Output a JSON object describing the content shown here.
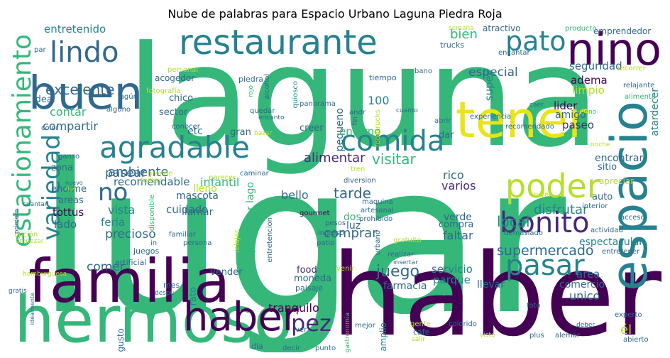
{
  "title": "Nube de palabras para Espacio Urbano Laguna Piedra Roja",
  "palette": {
    "dark_purple": "#440154",
    "purple": "#482878",
    "blue": "#31688e",
    "teal": "#26828e",
    "green": "#35b779",
    "yellow_green": "#b5de2b",
    "yellow": "#e8e419"
  },
  "words": [
    {
      "text": "lugar",
      "color": "#35b779"
    },
    {
      "text": "laguna",
      "color": "#35b779"
    },
    {
      "text": "haber",
      "color": "#440154"
    },
    {
      "text": "hermoso",
      "color": "#35b779"
    },
    {
      "text": "familia",
      "color": "#440154"
    },
    {
      "text": "restaurante",
      "color": "#26828e"
    },
    {
      "text": "espacio",
      "color": "#26828e"
    },
    {
      "text": "tener",
      "color": "#e8e419"
    },
    {
      "text": "buen",
      "color": "#31688e"
    },
    {
      "text": "nino",
      "color": "#440154"
    },
    {
      "text": "estacionamiento",
      "color": "#35b779"
    },
    {
      "text": "agradable",
      "color": "#26828e"
    },
    {
      "text": "bonito",
      "color": "#482878"
    },
    {
      "text": "pasar",
      "color": "#26828e"
    },
    {
      "text": "poder",
      "color": "#b5de2b"
    },
    {
      "text": "comida",
      "color": "#26828e"
    },
    {
      "text": "pez",
      "color": "#482878"
    },
    {
      "text": "lindo",
      "color": "#31688e"
    },
    {
      "text": "pato",
      "color": "#26828e"
    },
    {
      "text": "variedad",
      "color": "#26828e"
    },
    {
      "text": "no",
      "color": "#31688e"
    },
    {
      "text": "excelente",
      "color": "#31688e"
    },
    {
      "text": "haber",
      "color": "#440154"
    },
    {
      "text": "entretenido",
      "color": "#26828e"
    },
    {
      "text": "bien",
      "color": "#35b779"
    },
    {
      "text": "supermercado",
      "color": "#31688e"
    },
    {
      "text": "juego",
      "color": "#31688e"
    },
    {
      "text": "local",
      "color": "#26828e"
    },
    {
      "text": "disfrutar",
      "color": "#26828e"
    },
    {
      "text": "tarde",
      "color": "#31688e"
    },
    {
      "text": "visitar",
      "color": "#35b779"
    },
    {
      "text": "ambiente",
      "color": "#31688e"
    },
    {
      "text": "alimentar",
      "color": "#482878"
    },
    {
      "text": "especial",
      "color": "#31688e"
    },
    {
      "text": "pasear",
      "color": "#31688e"
    },
    {
      "text": "comer",
      "color": "#31688e"
    },
    {
      "text": "comprar",
      "color": "#31688e"
    },
    {
      "text": "precioso",
      "color": "#31688e"
    },
    {
      "text": "tranquilo",
      "color": "#440154"
    },
    {
      "text": "contar",
      "color": "#35b779"
    },
    {
      "text": "compartir",
      "color": "#31688e"
    },
    {
      "text": "recomendable",
      "color": "#31688e"
    },
    {
      "text": "infantil",
      "color": "#35b779"
    },
    {
      "text": "vista",
      "color": "#26828e"
    },
    {
      "text": "rico",
      "color": "#31688e"
    },
    {
      "text": "varios",
      "color": "#482878"
    },
    {
      "text": "cuidado",
      "color": "#31688e"
    },
    {
      "text": "bello",
      "color": "#31688e"
    },
    {
      "text": "pequeno",
      "color": "#31688e"
    },
    {
      "text": "100",
      "color": "#26828e"
    },
    {
      "text": "super",
      "color": "#26828e"
    },
    {
      "text": "etc",
      "color": "#31688e"
    },
    {
      "text": "entorno",
      "color": "#35b779"
    },
    {
      "text": "dispensador lago",
      "color": "#35b779"
    },
    {
      "text": "adema",
      "color": "#440154"
    },
    {
      "text": "limpio",
      "color": "#b5de2b"
    },
    {
      "text": "seguridad",
      "color": "#31688e"
    },
    {
      "text": "lider",
      "color": "#440154"
    },
    {
      "text": "atardecer",
      "color": "#26828e"
    },
    {
      "text": "paseo",
      "color": "#482878"
    },
    {
      "text": "amigo",
      "color": "#31688e"
    },
    {
      "text": "encontrar",
      "color": "#31688e"
    },
    {
      "text": "feria",
      "color": "#26828e"
    },
    {
      "text": "lado",
      "color": "#31688e"
    },
    {
      "text": "tottus",
      "color": "#440154"
    },
    {
      "text": "mascota",
      "color": "#31688e"
    },
    {
      "text": "lleno",
      "color": "#b5de2b"
    },
    {
      "text": "llamar",
      "color": "#31688e"
    },
    {
      "text": "faltar",
      "color": "#31688e"
    },
    {
      "text": "servicio",
      "color": "#26828e"
    },
    {
      "text": "parque",
      "color": "#26828e"
    },
    {
      "text": "farmacia",
      "color": "#31688e"
    },
    {
      "text": "llevar",
      "color": "#31688e"
    },
    {
      "text": "area",
      "color": "#31688e"
    },
    {
      "text": "comercio",
      "color": "#31688e"
    },
    {
      "text": "unico",
      "color": "#31688e"
    },
    {
      "text": "él",
      "color": "#b5de2b"
    },
    {
      "text": "espectacular",
      "color": "#26828e"
    },
    {
      "text": "verde",
      "color": "#31688e"
    },
    {
      "text": "compra",
      "color": "#31688e"
    },
    {
      "text": "dos",
      "color": "#35b779"
    },
    {
      "text": "luz",
      "color": "#31688e"
    },
    {
      "text": "gran",
      "color": "#31688e"
    },
    {
      "text": "creer",
      "color": "#31688e"
    },
    {
      "text": "dar",
      "color": "#31688e"
    },
    {
      "text": "sitio",
      "color": "#31688e"
    },
    {
      "text": "auto",
      "color": "#31688e"
    },
    {
      "text": "apreciar",
      "color": "#b5de2b"
    },
    {
      "text": "vender",
      "color": "#31688e"
    },
    {
      "text": "food",
      "color": "#482878"
    },
    {
      "text": "moneda",
      "color": "#31688e"
    },
    {
      "text": "paisaje",
      "color": "#31688e"
    },
    {
      "text": "ideal",
      "color": "#31688e"
    },
    {
      "text": "chico",
      "color": "#31688e"
    },
    {
      "text": "sector",
      "color": "#31688e"
    },
    {
      "text": "zona",
      "color": "#31688e"
    },
    {
      "text": "enorme",
      "color": "#31688e"
    },
    {
      "text": "areas",
      "color": "#31688e"
    },
    {
      "text": "acogedor",
      "color": "#31688e"
    },
    {
      "text": "alimento",
      "color": "#35b779"
    },
    {
      "text": "atractivo",
      "color": "#31688e"
    },
    {
      "text": "emprendedor",
      "color": "#31688e"
    },
    {
      "text": "producto",
      "color": "#35b779"
    },
    {
      "text": "tiempo",
      "color": "#31688e"
    },
    {
      "text": "bano",
      "color": "#31688e"
    },
    {
      "text": "trucks",
      "color": "#31688e"
    },
    {
      "text": "piedra",
      "color": "#31688e"
    },
    {
      "text": "rojo",
      "color": "#35b779"
    },
    {
      "text": "personal",
      "color": "#b5de2b"
    },
    {
      "text": "fotografía",
      "color": "#b5de2b"
    },
    {
      "text": "alcohol",
      "color": "#31688e"
    },
    {
      "text": "quiosco",
      "color": "#26828e"
    },
    {
      "text": "panorama",
      "color": "#31688e"
    },
    {
      "text": "quedar",
      "color": "#31688e"
    },
    {
      "text": "encanto",
      "color": "#31688e"
    },
    {
      "text": "cuanto",
      "color": "#31688e"
    },
    {
      "text": "experiencia",
      "color": "#31688e"
    },
    {
      "text": "recomendado",
      "color": "#31688e"
    },
    {
      "text": "bueno",
      "color": "#35b779"
    },
    {
      "text": "abrir",
      "color": "#31688e"
    },
    {
      "text": "noche",
      "color": "#b5de2b"
    },
    {
      "text": "relajante",
      "color": "#31688e"
    },
    {
      "text": "recorrer",
      "color": "#b5de2b"
    },
    {
      "text": "encantar",
      "color": "#31688e"
    },
    {
      "text": "semana",
      "color": "#b5de2b"
    },
    {
      "text": "gente",
      "color": "#b5de2b"
    },
    {
      "text": "cafe",
      "color": "#31688e"
    },
    {
      "text": "salir",
      "color": "#b5de2b"
    },
    {
      "text": "mejor",
      "color": "#31688e"
    },
    {
      "text": "ver",
      "color": "#31688e"
    },
    {
      "text": "colorido",
      "color": "#31688e"
    },
    {
      "text": "visto",
      "color": "#b5de2b"
    },
    {
      "text": "plus",
      "color": "#31688e"
    },
    {
      "text": "alemar",
      "color": "#31688e"
    },
    {
      "text": "abierto",
      "color": "#31688e"
    },
    {
      "text": "experto",
      "color": "#31688e"
    },
    {
      "text": "deber",
      "color": "#31688e"
    },
    {
      "text": "foto",
      "color": "#31688e"
    },
    {
      "text": "dia",
      "color": "#31688e"
    },
    {
      "text": "decir",
      "color": "#31688e"
    },
    {
      "text": "punto",
      "color": "#31688e"
    },
    {
      "text": "gusto",
      "color": "#31688e"
    },
    {
      "text": "gastronomia",
      "color": "#35b779"
    },
    {
      "text": "amplio",
      "color": "#26828e"
    },
    {
      "text": "rato",
      "color": "#26828e"
    },
    {
      "text": "mes",
      "color": "#31688e"
    },
    {
      "text": "despu",
      "color": "#31688e"
    },
    {
      "text": "juegos",
      "color": "#31688e"
    },
    {
      "text": "artificial",
      "color": "#31688e"
    },
    {
      "text": "hamburguesa",
      "color": "#b5de2b"
    },
    {
      "text": "idealmente",
      "color": "#31688e"
    },
    {
      "text": "gratis",
      "color": "#31688e"
    },
    {
      "text": "opción",
      "color": "#b5de2b"
    },
    {
      "text": "empezar",
      "color": "#b5de2b"
    },
    {
      "text": "primero",
      "color": "#31688e"
    },
    {
      "text": "cuantar",
      "color": "#31688e"
    },
    {
      "text": "rica",
      "color": "#b5de2b"
    },
    {
      "text": "nuevo",
      "color": "#31688e"
    },
    {
      "text": "ganso",
      "color": "#31688e"
    },
    {
      "text": "color",
      "color": "#31688e"
    },
    {
      "text": "alguno",
      "color": "#31688e"
    },
    {
      "text": "lagún",
      "color": "#31688e"
    },
    {
      "text": "par",
      "color": "#31688e"
    },
    {
      "text": "conocer",
      "color": "#31688e"
    },
    {
      "text": "grande",
      "color": "#b5de2b"
    },
    {
      "text": "tomar",
      "color": "#b5de2b"
    },
    {
      "text": "parecer",
      "color": "#b5de2b"
    },
    {
      "text": "caminar",
      "color": "#31688e"
    },
    {
      "text": "diversion",
      "color": "#31688e"
    },
    {
      "text": "maquina",
      "color": "#31688e"
    },
    {
      "text": "artesanal",
      "color": "#31688e"
    },
    {
      "text": "gourmet",
      "color": "#440154"
    },
    {
      "text": "prohibido",
      "color": "#31688e"
    },
    {
      "text": "pesos",
      "color": "#31688e"
    },
    {
      "text": "ingreso",
      "color": "#31688e"
    },
    {
      "text": "patio",
      "color": "#31688e"
    },
    {
      "text": "urbano",
      "color": "#31688e"
    },
    {
      "text": "gratuito",
      "color": "#b5de2b"
    },
    {
      "text": "realizar",
      "color": "#31688e"
    },
    {
      "text": "insertar",
      "color": "#31688e"
    },
    {
      "text": "venir",
      "color": "#b5de2b"
    },
    {
      "text": "demasiado",
      "color": "#31688e"
    },
    {
      "text": "actividad",
      "color": "#31688e"
    },
    {
      "text": "entretener",
      "color": "#31688e"
    },
    {
      "text": "acceso",
      "color": "#31688e"
    },
    {
      "text": "interior",
      "color": "#31688e"
    },
    {
      "text": "nivel",
      "color": "#b5de2b"
    },
    {
      "text": "familiar",
      "color": "#31688e"
    },
    {
      "text": "persona",
      "color": "#31688e"
    },
    {
      "text": "relajar",
      "color": "#b5de2b"
    },
    {
      "text": "disponible",
      "color": "#35b779"
    },
    {
      "text": "entretencion",
      "color": "#31688e"
    },
    {
      "text": "foodtrucks",
      "color": "#b5de2b"
    },
    {
      "text": "tren",
      "color": "#b5de2b"
    },
    {
      "text": "andr",
      "color": "#31688e"
    },
    {
      "text": "fin",
      "color": "#31688e"
    },
    {
      "text": "in",
      "color": "#31688e"
    },
    {
      "text": "caer",
      "color": "#31688e"
    },
    {
      "text": "bazar",
      "color": "#b5de2b"
    }
  ]
}
